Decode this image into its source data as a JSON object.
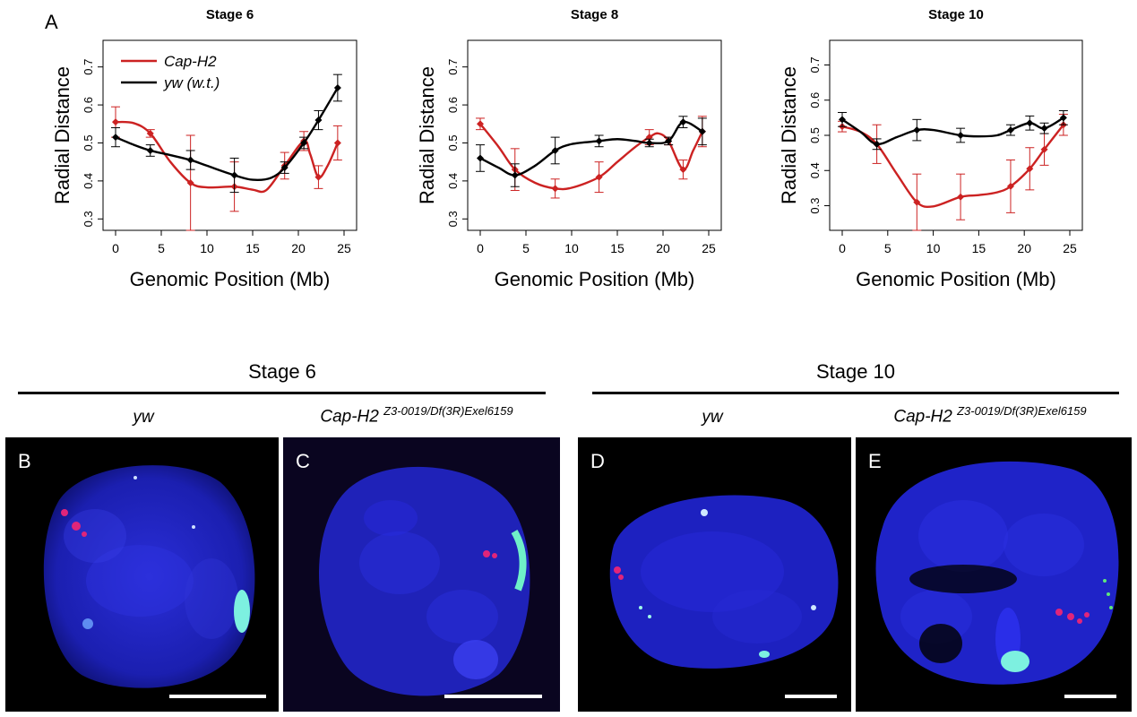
{
  "panel_a_label": "A",
  "chart_data": [
    {
      "type": "line",
      "title": "Stage 6",
      "xlabel": "Genomic Position (Mb)",
      "ylabel": "Radial Distance",
      "xlim": [
        0,
        25
      ],
      "ylim": [
        0.27,
        0.77
      ],
      "xticks": [
        "0",
        "5",
        "10",
        "15",
        "20",
        "25"
      ],
      "yticks": [
        "0.3",
        "0.4",
        "0.5",
        "0.6",
        "0.7"
      ],
      "legend": "top-left",
      "series": [
        {
          "name": "Cap-H2",
          "color": "#cc2222",
          "points": [
            [
              0,
              0.555,
              0.04
            ],
            [
              3.8,
              0.525,
              0.01
            ],
            [
              8.2,
              0.395,
              0.125
            ],
            [
              13,
              0.385,
              0.065
            ],
            [
              18.5,
              0.44,
              0.035
            ],
            [
              20.6,
              0.505,
              0.025
            ],
            [
              22.2,
              0.41,
              0.03
            ],
            [
              24.3,
              0.5,
              0.045
            ]
          ],
          "curve": [
            [
              0,
              0.555
            ],
            [
              2,
              0.552
            ],
            [
              3.8,
              0.525
            ],
            [
              6,
              0.45
            ],
            [
              8.2,
              0.395
            ],
            [
              10,
              0.383
            ],
            [
              13,
              0.385
            ],
            [
              15,
              0.377
            ],
            [
              16.5,
              0.376
            ],
            [
              18.5,
              0.44
            ],
            [
              20.6,
              0.505
            ],
            [
              21.3,
              0.47
            ],
            [
              22.2,
              0.41
            ],
            [
              23.2,
              0.44
            ],
            [
              24.3,
              0.5
            ]
          ]
        },
        {
          "name": "yw (w.t.)",
          "color": "#000000",
          "points": [
            [
              0,
              0.515,
              0.025
            ],
            [
              3.8,
              0.48,
              0.015
            ],
            [
              8.2,
              0.455,
              0.025
            ],
            [
              13,
              0.415,
              0.045
            ],
            [
              18.5,
              0.435,
              0.015
            ],
            [
              20.6,
              0.5,
              0.015
            ],
            [
              22.2,
              0.56,
              0.025
            ],
            [
              24.3,
              0.645,
              0.035
            ]
          ],
          "curve": [
            [
              0,
              0.515
            ],
            [
              2,
              0.495
            ],
            [
              3.8,
              0.48
            ],
            [
              6,
              0.468
            ],
            [
              8.2,
              0.455
            ],
            [
              10,
              0.44
            ],
            [
              13,
              0.415
            ],
            [
              15,
              0.403
            ],
            [
              17,
              0.408
            ],
            [
              18.5,
              0.435
            ],
            [
              20.6,
              0.5
            ],
            [
              22.2,
              0.56
            ],
            [
              24.3,
              0.645
            ]
          ]
        }
      ]
    },
    {
      "type": "line",
      "title": "Stage 8",
      "xlabel": "Genomic Position (Mb)",
      "ylabel": "Radial Distance",
      "xlim": [
        0,
        25
      ],
      "ylim": [
        0.27,
        0.77
      ],
      "xticks": [
        "0",
        "5",
        "10",
        "15",
        "20",
        "25"
      ],
      "yticks": [
        "0.3",
        "0.4",
        "0.5",
        "0.6",
        "0.7"
      ],
      "series": [
        {
          "name": "Cap-H2",
          "color": "#cc2222",
          "points": [
            [
              0,
              0.55,
              0.015
            ],
            [
              3.8,
              0.43,
              0.055
            ],
            [
              8.2,
              0.38,
              0.025
            ],
            [
              13,
              0.41,
              0.04
            ],
            [
              18.5,
              0.515,
              0.02
            ],
            [
              20.6,
              0.505,
              0.01
            ],
            [
              22.2,
              0.43,
              0.025
            ],
            [
              24.3,
              0.53,
              0.04
            ]
          ],
          "curve": [
            [
              0,
              0.55
            ],
            [
              2,
              0.49
            ],
            [
              3.8,
              0.43
            ],
            [
              6,
              0.395
            ],
            [
              8.2,
              0.38
            ],
            [
              10,
              0.382
            ],
            [
              13,
              0.41
            ],
            [
              15,
              0.45
            ],
            [
              17,
              0.49
            ],
            [
              18.5,
              0.515
            ],
            [
              19.5,
              0.525
            ],
            [
              20.6,
              0.505
            ],
            [
              22.2,
              0.43
            ],
            [
              23.3,
              0.48
            ],
            [
              24.3,
              0.53
            ]
          ]
        },
        {
          "name": "yw (w.t.)",
          "color": "#000000",
          "points": [
            [
              0,
              0.46,
              0.035
            ],
            [
              3.8,
              0.415,
              0.03
            ],
            [
              8.2,
              0.48,
              0.035
            ],
            [
              13,
              0.505,
              0.015
            ],
            [
              18.5,
              0.5,
              0.01
            ],
            [
              20.6,
              0.505,
              0.01
            ],
            [
              22.2,
              0.555,
              0.015
            ],
            [
              24.3,
              0.53,
              0.035
            ]
          ],
          "curve": [
            [
              0,
              0.46
            ],
            [
              2,
              0.435
            ],
            [
              3.8,
              0.415
            ],
            [
              6,
              0.44
            ],
            [
              8.2,
              0.48
            ],
            [
              10,
              0.497
            ],
            [
              13,
              0.505
            ],
            [
              15,
              0.51
            ],
            [
              17,
              0.505
            ],
            [
              18.5,
              0.5
            ],
            [
              20.6,
              0.505
            ],
            [
              22.2,
              0.555
            ],
            [
              24.3,
              0.53
            ]
          ]
        }
      ]
    },
    {
      "type": "line",
      "title": "Stage 10",
      "xlabel": "Genomic Position (Mb)",
      "ylabel": "Radial Distance",
      "xlim": [
        0,
        25
      ],
      "ylim": [
        0.23,
        0.77
      ],
      "xticks": [
        "0",
        "5",
        "10",
        "15",
        "20",
        "25"
      ],
      "yticks": [
        "0.3",
        "0.4",
        "0.5",
        "0.6",
        "0.7"
      ],
      "series": [
        {
          "name": "Cap-H2",
          "color": "#cc2222",
          "points": [
            [
              0,
              0.525,
              0.015
            ],
            [
              3.8,
              0.475,
              0.055
            ],
            [
              8.2,
              0.31,
              0.08
            ],
            [
              13,
              0.325,
              0.065
            ],
            [
              18.5,
              0.355,
              0.075
            ],
            [
              20.6,
              0.405,
              0.06
            ],
            [
              22.2,
              0.46,
              0.045
            ],
            [
              24.3,
              0.53,
              0.03
            ]
          ],
          "curve": [
            [
              0,
              0.525
            ],
            [
              2,
              0.51
            ],
            [
              3.8,
              0.475
            ],
            [
              6,
              0.39
            ],
            [
              8.2,
              0.31
            ],
            [
              10,
              0.298
            ],
            [
              13,
              0.325
            ],
            [
              15,
              0.33
            ],
            [
              17,
              0.338
            ],
            [
              18.5,
              0.355
            ],
            [
              20.6,
              0.405
            ],
            [
              22.2,
              0.46
            ],
            [
              24.3,
              0.53
            ]
          ]
        },
        {
          "name": "yw (w.t.)",
          "color": "#000000",
          "points": [
            [
              0,
              0.545,
              0.02
            ],
            [
              3.8,
              0.475,
              0.015
            ],
            [
              8.2,
              0.515,
              0.03
            ],
            [
              13,
              0.5,
              0.02
            ],
            [
              18.5,
              0.515,
              0.015
            ],
            [
              20.6,
              0.535,
              0.02
            ],
            [
              22.2,
              0.52,
              0.015
            ],
            [
              24.3,
              0.55,
              0.02
            ]
          ],
          "curve": [
            [
              0,
              0.545
            ],
            [
              2,
              0.51
            ],
            [
              3.8,
              0.475
            ],
            [
              6,
              0.495
            ],
            [
              8.2,
              0.515
            ],
            [
              10,
              0.515
            ],
            [
              13,
              0.5
            ],
            [
              15,
              0.497
            ],
            [
              17,
              0.5
            ],
            [
              18.5,
              0.515
            ],
            [
              20.6,
              0.535
            ],
            [
              22.2,
              0.52
            ],
            [
              24.3,
              0.55
            ]
          ]
        }
      ]
    }
  ],
  "bottom": {
    "stage6_title": "Stage 6",
    "stage10_title": "Stage 10",
    "genotype_wt": "yw",
    "genotype_mut_base": "Cap-H2",
    "genotype_mut_sup": "Z3-0019/Df(3R)Exel6159",
    "panels": [
      {
        "letter": "B"
      },
      {
        "letter": "C"
      },
      {
        "letter": "D"
      },
      {
        "letter": "E"
      }
    ]
  }
}
